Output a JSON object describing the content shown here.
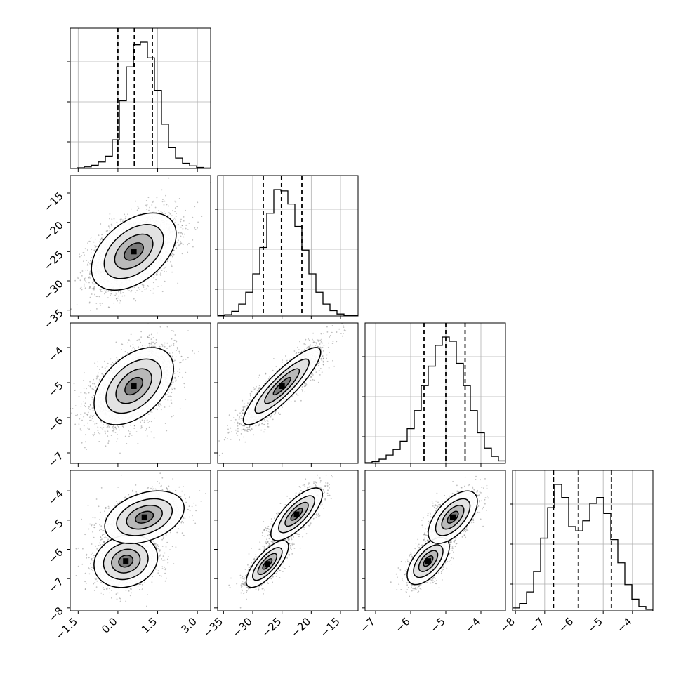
{
  "chart_data": {
    "type": "corner",
    "title": "",
    "parameters": [
      {
        "index": 0,
        "range": [
          -1.8,
          3.5
        ],
        "ticks": [
          -1.5,
          0.0,
          1.5,
          3.0
        ],
        "tick_labels": [
          "−1.5",
          "0.0",
          "1.5",
          "3.0"
        ],
        "quantiles": [
          0.0,
          0.62,
          1.3
        ]
      },
      {
        "index": 1,
        "range": [
          -36,
          -12
        ],
        "ticks": [
          -35,
          -30,
          -25,
          -20,
          -15
        ],
        "tick_labels": [
          "−35",
          "−30",
          "−25",
          "−20",
          "−15"
        ],
        "quantiles": [
          -28.2,
          -25.1,
          -21.6
        ]
      },
      {
        "index": 2,
        "range": [
          -7.3,
          -3.3
        ],
        "ticks": [
          -7,
          -6,
          -5,
          -4
        ],
        "tick_labels": [
          "−7",
          "−6",
          "−5",
          "−4"
        ],
        "quantiles": [
          -5.62,
          -5.0,
          -4.45
        ]
      },
      {
        "index": 3,
        "range": [
          -8.1,
          -3.3
        ],
        "ticks": [
          -8,
          -7,
          -6,
          -5,
          -4
        ],
        "tick_labels": [
          "−8",
          "−7",
          "−6",
          "−5",
          "−4"
        ],
        "quantiles": [
          -6.7,
          -5.85,
          -4.72
        ]
      }
    ],
    "histograms": [
      {
        "param": 0,
        "bin_edges": [
          -1.8,
          -1.535,
          -1.27,
          -1.005,
          -0.74,
          -0.475,
          -0.21,
          0.055,
          0.32,
          0.585,
          0.85,
          1.115,
          1.38,
          1.645,
          1.91,
          2.175,
          2.44,
          2.705,
          2.97,
          3.235,
          3.5
        ],
        "counts": [
          0.2,
          0.5,
          1.2,
          2.5,
          5.0,
          9.5,
          22.0,
          52.0,
          78.0,
          95.0,
          97.0,
          85.0,
          60.0,
          34.0,
          16.0,
          8.0,
          4.0,
          2.0,
          0.8,
          0.3
        ]
      },
      {
        "param": 1,
        "bin_edges": [
          -36.0,
          -34.8,
          -33.6,
          -32.4,
          -31.2,
          -30.0,
          -28.8,
          -27.6,
          -26.4,
          -25.2,
          -24.0,
          -22.8,
          -21.6,
          -20.4,
          -19.2,
          -18.0,
          -16.8,
          -15.6,
          -14.4,
          -13.2,
          -12.0
        ],
        "counts": [
          0.3,
          1.0,
          3.5,
          9.0,
          18.0,
          32.0,
          52.0,
          78.0,
          96.0,
          95.0,
          85.0,
          68.0,
          50.0,
          32.0,
          18.0,
          9.0,
          4.0,
          1.5,
          0.5,
          0.2
        ]
      },
      {
        "param": 2,
        "bin_edges": [
          -7.3,
          -7.1,
          -6.9,
          -6.7,
          -6.5,
          -6.3,
          -6.1,
          -5.9,
          -5.7,
          -5.5,
          -5.3,
          -5.1,
          -4.9,
          -4.7,
          -4.5,
          -4.3,
          -4.1,
          -3.9,
          -3.7,
          -3.5,
          -3.3
        ],
        "counts": [
          0.5,
          1.2,
          3.0,
          6.0,
          10.0,
          16.0,
          25.0,
          38.0,
          56.0,
          70.0,
          85.0,
          91.0,
          88.0,
          72.0,
          56.0,
          38.0,
          22.0,
          11.0,
          5.0,
          1.8
        ]
      },
      {
        "param": 3,
        "bin_edges": [
          -8.1,
          -7.86,
          -7.62,
          -7.38,
          -7.14,
          -6.9,
          -6.66,
          -6.42,
          -6.18,
          -5.94,
          -5.7,
          -5.46,
          -5.22,
          -4.98,
          -4.74,
          -4.5,
          -4.26,
          -4.02,
          -3.78,
          -3.54,
          -3.3
        ],
        "counts": [
          2.0,
          5.0,
          13.0,
          27.0,
          50.0,
          71.0,
          87.0,
          78.0,
          58.0,
          55.0,
          62.0,
          74.0,
          78.0,
          67.0,
          49.0,
          33.0,
          18.0,
          8.0,
          3.0,
          1.0
        ]
      }
    ],
    "joints": [
      {
        "x": 0,
        "y": 1,
        "mean": [
          0.6,
          -25.0
        ],
        "sd": [
          0.8,
          3.3
        ],
        "rho": 0.45
      },
      {
        "x": 0,
        "y": 2,
        "mean": [
          0.6,
          -5.1
        ],
        "sd": [
          0.75,
          0.55
        ],
        "rho": 0.45
      },
      {
        "x": 1,
        "y": 2,
        "mean": [
          -25.0,
          -5.1
        ],
        "sd": [
          3.3,
          0.55
        ],
        "rho": 0.88
      },
      {
        "x": 0,
        "y": 3,
        "modes": [
          {
            "mean": [
              0.3,
              -6.4
            ],
            "sd": [
              0.6,
              0.45
            ],
            "rho": 0.15
          },
          {
            "mean": [
              1.0,
              -4.9
            ],
            "sd": [
              0.75,
              0.45
            ],
            "rho": 0.35
          }
        ]
      },
      {
        "x": 1,
        "y": 3,
        "modes": [
          {
            "mean": [
              -27.5,
              -6.5
            ],
            "sd": [
              1.8,
              0.4
            ],
            "rho": 0.75
          },
          {
            "mean": [
              -22.5,
              -4.8
            ],
            "sd": [
              2.2,
              0.45
            ],
            "rho": 0.75
          }
        ]
      },
      {
        "x": 2,
        "y": 3,
        "modes": [
          {
            "mean": [
              -5.5,
              -6.4
            ],
            "sd": [
              0.3,
              0.4
            ],
            "rho": 0.6
          },
          {
            "mean": [
              -4.8,
              -4.9
            ],
            "sd": [
              0.35,
              0.45
            ],
            "rho": 0.6
          }
        ]
      }
    ]
  }
}
